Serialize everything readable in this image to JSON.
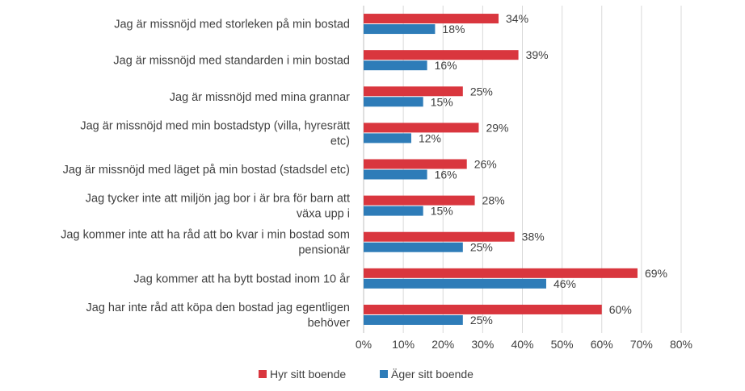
{
  "chart_data": {
    "type": "bar",
    "orientation": "horizontal",
    "categories": [
      [
        "Jag är missnöjd med storleken på min bostad"
      ],
      [
        "Jag är missnöjd med standarden i min bostad"
      ],
      [
        "Jag är missnöjd med mina grannar"
      ],
      [
        "Jag är missnöjd med min bostadstyp (villa, hyresrätt",
        "etc)"
      ],
      [
        "Jag är missnöjd med läget på min bostad (stadsdel etc)"
      ],
      [
        "Jag tycker inte att miljön jag bor i är bra för barn att",
        "växa upp i"
      ],
      [
        "Jag kommer inte att ha råd att bo kvar i min bostad som",
        "pensionär"
      ],
      [
        "Jag kommer att ha bytt bostad inom 10 år"
      ],
      [
        "Jag har inte råd att köpa den bostad jag egentligen",
        "behöver"
      ]
    ],
    "series": [
      {
        "name": "Hyr sitt boende",
        "color": "#D9363E",
        "values": [
          34,
          39,
          25,
          29,
          26,
          28,
          38,
          69,
          60
        ],
        "labels": [
          "34%",
          "39%",
          "25%",
          "29%",
          "26%",
          "28%",
          "38%",
          "69%",
          "60%"
        ]
      },
      {
        "name": "Äger sitt boende",
        "color": "#2E7CB8",
        "values": [
          18,
          16,
          15,
          12,
          16,
          15,
          25,
          46,
          25
        ],
        "labels": [
          "18%",
          "16%",
          "15%",
          "12%",
          "16%",
          "15%",
          "25%",
          "46%",
          "25%"
        ]
      }
    ],
    "xlim": [
      0,
      80
    ],
    "x_ticks": [
      "0%",
      "10%",
      "20%",
      "30%",
      "40%",
      "50%",
      "60%",
      "70%",
      "80%"
    ],
    "grid": true,
    "legend": "bottom-center",
    "title": "",
    "xlabel": "",
    "ylabel": ""
  }
}
